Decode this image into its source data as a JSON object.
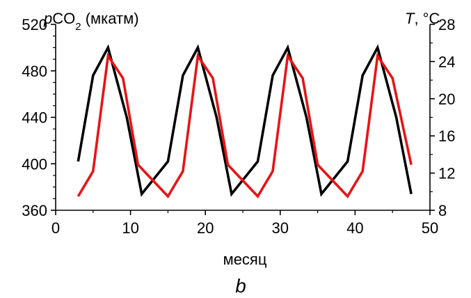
{
  "chart_data": {
    "type": "line",
    "x": [
      3,
      5,
      7,
      9.5,
      11.5,
      15,
      17,
      19,
      21.5,
      23.5,
      27,
      29,
      31,
      33.5,
      35.5,
      39,
      41,
      43,
      45.5,
      47.5
    ],
    "xlim": [
      0,
      50
    ],
    "x_ticks": [
      0,
      10,
      20,
      30,
      40,
      50
    ],
    "xlabel": "месяц",
    "ylabel_left": "pCO2 (мкатм)",
    "ylabel_left_parts": {
      "italic": "p",
      "main": "CO",
      "sub": "2",
      "rest": " (мкатм)"
    },
    "ylabel_right": "T, °C",
    "ylabel_right_parts": {
      "italic": "T",
      "rest": ", °C"
    },
    "ylim_left": [
      360,
      520
    ],
    "y_ticks_left": [
      360,
      400,
      440,
      480,
      520
    ],
    "ylim_right": [
      8,
      28
    ],
    "y_ticks_right": [
      8,
      12,
      16,
      20,
      24,
      28
    ],
    "panel_label": "b",
    "series": [
      {
        "axis": "left",
        "color": "#000000",
        "points": [
          [
            3,
            402
          ],
          [
            5,
            476
          ],
          [
            7,
            500
          ],
          [
            9.5,
            440
          ],
          [
            11.5,
            374
          ],
          [
            15,
            402
          ],
          [
            17,
            476
          ],
          [
            19,
            500
          ],
          [
            21.5,
            440
          ],
          [
            23.5,
            374
          ],
          [
            27,
            402
          ],
          [
            29,
            476
          ],
          [
            31,
            500
          ],
          [
            33.5,
            440
          ],
          [
            35.5,
            374
          ],
          [
            39,
            402
          ],
          [
            41,
            476
          ],
          [
            43,
            500
          ],
          [
            45.5,
            440
          ],
          [
            47.5,
            374
          ]
        ]
      },
      {
        "axis": "right",
        "color": "#e81414",
        "points": [
          [
            3,
            9.5
          ],
          [
            5,
            12.2
          ],
          [
            7,
            24.6
          ],
          [
            9,
            22.2
          ],
          [
            11,
            12.9
          ],
          [
            15,
            9.5
          ],
          [
            17,
            12.2
          ],
          [
            19,
            24.6
          ],
          [
            21,
            22.2
          ],
          [
            23,
            12.9
          ],
          [
            27,
            9.5
          ],
          [
            29,
            12.2
          ],
          [
            31,
            24.6
          ],
          [
            33,
            22.2
          ],
          [
            35,
            12.9
          ],
          [
            39,
            9.5
          ],
          [
            41,
            12.2
          ],
          [
            43,
            24.6
          ],
          [
            45,
            22.2
          ],
          [
            47.5,
            12.9
          ]
        ]
      }
    ]
  }
}
